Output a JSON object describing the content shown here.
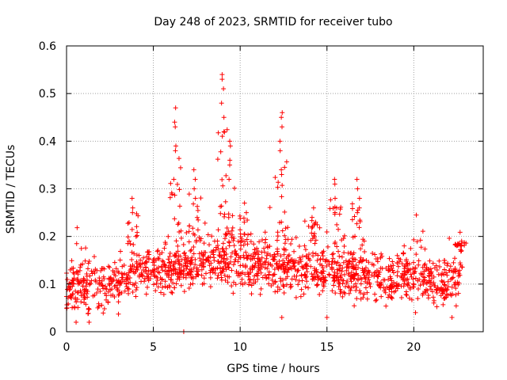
{
  "chart_data": {
    "type": "scatter",
    "title": "Day 248 of 2023, SRMTID for receiver tubo",
    "xlabel": "GPS time / hours",
    "ylabel": "SRMTID / TECUs",
    "xlim": [
      0,
      24
    ],
    "ylim": [
      0,
      0.6
    ],
    "x_ticks": [
      0,
      5,
      10,
      15,
      20
    ],
    "y_ticks": [
      0,
      0.1,
      0.2,
      0.3,
      0.4,
      0.5,
      0.6
    ],
    "x_tick_labels": [
      "0",
      "5",
      "10",
      "15",
      "20"
    ],
    "y_tick_labels": [
      "0",
      "0.1",
      "0.2",
      "0.3",
      "0.4",
      "0.5",
      "0.6"
    ],
    "grid": true,
    "marker": "plus",
    "marker_color": "#ff0000",
    "series": [
      {
        "name": "SRMTID",
        "x_range_hours": [
          0,
          22.8
        ],
        "baseline_profile": [
          [
            0,
            0.09
          ],
          [
            1,
            0.095
          ],
          [
            2,
            0.085
          ],
          [
            3,
            0.1
          ],
          [
            4,
            0.12
          ],
          [
            5,
            0.13
          ],
          [
            6,
            0.125
          ],
          [
            7,
            0.14
          ],
          [
            8,
            0.14
          ],
          [
            9,
            0.15
          ],
          [
            10,
            0.145
          ],
          [
            11,
            0.14
          ],
          [
            12,
            0.14
          ],
          [
            13,
            0.135
          ],
          [
            14,
            0.13
          ],
          [
            15,
            0.12
          ],
          [
            16,
            0.13
          ],
          [
            17,
            0.12
          ],
          [
            18,
            0.11
          ],
          [
            19,
            0.11
          ],
          [
            20,
            0.13
          ],
          [
            21,
            0.11
          ],
          [
            22,
            0.1
          ],
          [
            22.8,
            0.12
          ]
        ],
        "peaks": [
          {
            "x": 6.25,
            "values": [
              0.47,
              0.44,
              0.43,
              0.39,
              0.38,
              0.32
            ]
          },
          {
            "x": 9.0,
            "values": [
              0.54,
              0.53,
              0.51,
              0.48,
              0.45,
              0.42
            ]
          },
          {
            "x": 9.4,
            "values": [
              0.4,
              0.39,
              0.36,
              0.35
            ]
          },
          {
            "x": 12.35,
            "values": [
              0.46,
              0.45,
              0.43,
              0.4,
              0.38,
              0.34,
              0.33
            ]
          },
          {
            "x": 7.4,
            "values": [
              0.34,
              0.32,
              0.3,
              0.28
            ]
          },
          {
            "x": 15.5,
            "values": [
              0.32,
              0.31,
              0.28,
              0.26
            ]
          },
          {
            "x": 16.8,
            "values": [
              0.32,
              0.3,
              0.28,
              0.26,
              0.25
            ]
          },
          {
            "x": 3.8,
            "values": [
              0.28,
              0.26,
              0.25
            ]
          },
          {
            "x": 10.3,
            "values": [
              0.27,
              0.25,
              0.23
            ]
          },
          {
            "x": 14.2,
            "values": [
              0.26,
              0.24,
              0.22
            ]
          },
          {
            "x": 22.7,
            "values": [
              0.19,
              0.18,
              0.17
            ]
          }
        ],
        "outliers_low": [
          [
            0.55,
            0.02
          ],
          [
            1.3,
            0.02
          ],
          [
            6.75,
            0.0
          ],
          [
            12.4,
            0.03
          ],
          [
            15.0,
            0.03
          ],
          [
            20.1,
            0.04
          ],
          [
            22.2,
            0.03
          ]
        ]
      }
    ]
  }
}
